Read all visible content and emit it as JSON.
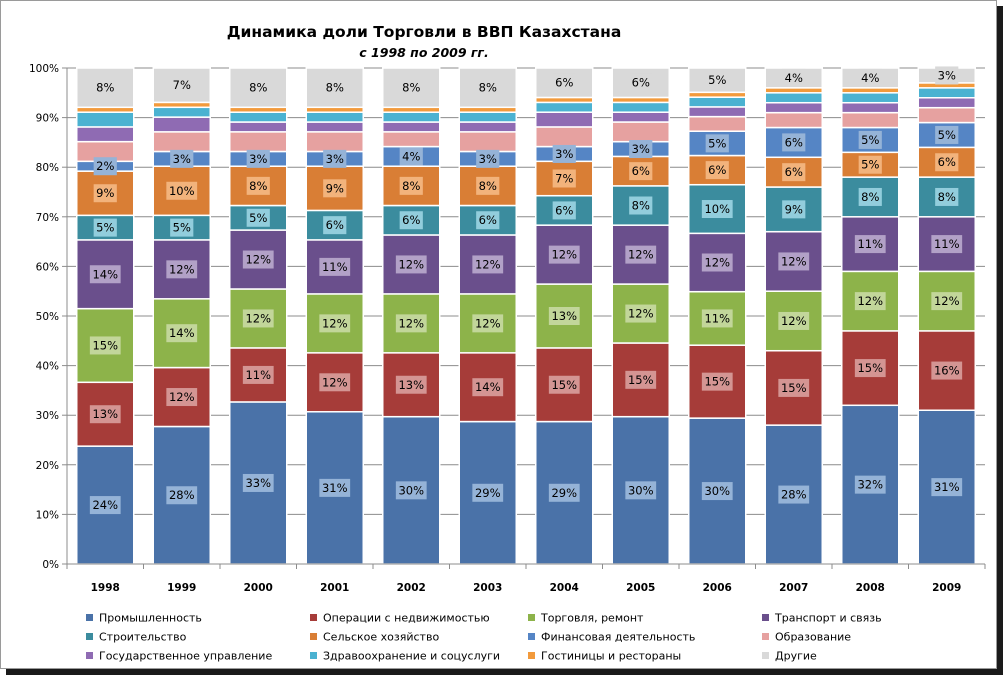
{
  "chart_data": {
    "type": "bar",
    "stacked": true,
    "percent": true,
    "title": "Динамика доли Торговли в ВВП Казахстана",
    "subtitle": "с 1998 по 2009 гг.",
    "categories": [
      "1998",
      "1999",
      "2000",
      "2001",
      "2002",
      "2003",
      "2004",
      "2005",
      "2006",
      "2007",
      "2008",
      "2009"
    ],
    "y_ticks": [
      "0%",
      "10%",
      "20%",
      "30%",
      "40%",
      "50%",
      "60%",
      "70%",
      "80%",
      "90%",
      "100%"
    ],
    "ylim": [
      0,
      100
    ],
    "grid": true,
    "legend_position": "bottom",
    "series": [
      {
        "name": "Промышленность",
        "color": "#4a72a8",
        "label_bg": "#95b3d7",
        "values": [
          24,
          28,
          33,
          31,
          30,
          29,
          29,
          30,
          30,
          28,
          32,
          31
        ],
        "labels": [
          "24%",
          "28%",
          "33%",
          "31%",
          "30%",
          "29%",
          "29%",
          "30%",
          "30%",
          "28%",
          "32%",
          "31%"
        ]
      },
      {
        "name": "Операции с недвижимостью",
        "color": "#a63c39",
        "label_bg": "#d49593",
        "values": [
          13,
          12,
          11,
          12,
          13,
          14,
          15,
          15,
          15,
          15,
          15,
          16
        ],
        "labels": [
          "13%",
          "12%",
          "11%",
          "12%",
          "13%",
          "14%",
          "15%",
          "15%",
          "15%",
          "15%",
          "15%",
          "16%"
        ]
      },
      {
        "name": "Торговля, ремонт",
        "color": "#8db34a",
        "label_bg": "#c2d69a",
        "values": [
          15,
          14,
          12,
          12,
          12,
          12,
          13,
          12,
          11,
          12,
          12,
          12
        ],
        "labels": [
          "15%",
          "14%",
          "12%",
          "12%",
          "12%",
          "12%",
          "13%",
          "12%",
          "11%",
          "12%",
          "12%",
          "12%"
        ]
      },
      {
        "name": "Транспорт и связь",
        "color": "#6a4f8c",
        "label_bg": "#b2a1c7",
        "values": [
          14,
          12,
          12,
          11,
          12,
          12,
          12,
          12,
          12,
          12,
          11,
          11
        ],
        "labels": [
          "14%",
          "12%",
          "12%",
          "11%",
          "12%",
          "12%",
          "12%",
          "12%",
          "12%",
          "12%",
          "11%",
          "11%"
        ]
      },
      {
        "name": "Строительство",
        "color": "#3b8c9e",
        "label_bg": "#92cddc",
        "values": [
          5,
          5,
          5,
          6,
          6,
          6,
          6,
          8,
          10,
          9,
          8,
          8
        ],
        "labels": [
          "5%",
          "5%",
          "5%",
          "6%",
          "6%",
          "6%",
          "6%",
          "8%",
          "10%",
          "9%",
          "8%",
          "8%"
        ]
      },
      {
        "name": "Сельское хозяйство",
        "color": "#d97e35",
        "label_bg": "#f2b37c",
        "values": [
          9,
          10,
          8,
          9,
          8,
          8,
          7,
          6,
          6,
          6,
          5,
          6
        ],
        "labels": [
          "9%",
          "10%",
          "8%",
          "9%",
          "8%",
          "8%",
          "7%",
          "6%",
          "6%",
          "6%",
          "5%",
          "6%"
        ]
      },
      {
        "name": "Финансовая деятельность",
        "color": "#5585c5",
        "label_bg": "#95b3d7",
        "values": [
          2,
          3,
          3,
          3,
          4,
          3,
          3,
          3,
          5,
          6,
          5,
          5
        ],
        "labels": [
          "2%",
          "3%",
          "3%",
          "3%",
          "4%",
          "3%",
          "3%",
          "3%",
          "5%",
          "6%",
          "5%",
          "5%"
        ]
      },
      {
        "name": "Образование",
        "color": "#e6a1a0",
        "label_bg": "#e6a1a0",
        "values": [
          4,
          4,
          4,
          4,
          3,
          4,
          4,
          4,
          3,
          3,
          3,
          3
        ],
        "labels": null
      },
      {
        "name": "Государственное управление",
        "color": "#8f6bb3",
        "label_bg": "#b2a1c7",
        "values": [
          3,
          3,
          2,
          2,
          2,
          2,
          3,
          2,
          2,
          2,
          2,
          2
        ],
        "labels": null
      },
      {
        "name": "Здравоохранение и соцуслуги",
        "color": "#4bb2d1",
        "label_bg": "#92cddc",
        "values": [
          3,
          2,
          2,
          2,
          2,
          2,
          2,
          2,
          2,
          2,
          2,
          2
        ],
        "labels": null
      },
      {
        "name": "Гостиницы и рестораны",
        "color": "#f29a3c",
        "label_bg": "#f2b37c",
        "values": [
          1,
          1,
          1,
          1,
          1,
          1,
          1,
          1,
          1,
          1,
          1,
          1
        ],
        "labels": null
      },
      {
        "name": "Другие",
        "color": "#d9d9d9",
        "label_bg": "#d9d9d9",
        "values": [
          8,
          7,
          8,
          8,
          8,
          8,
          6,
          6,
          5,
          4,
          4,
          3
        ],
        "labels": [
          "8%",
          "7%",
          "8%",
          "8%",
          "8%",
          "8%",
          "6%",
          "6%",
          "5%",
          "4%",
          "4%",
          "3%"
        ]
      }
    ]
  }
}
